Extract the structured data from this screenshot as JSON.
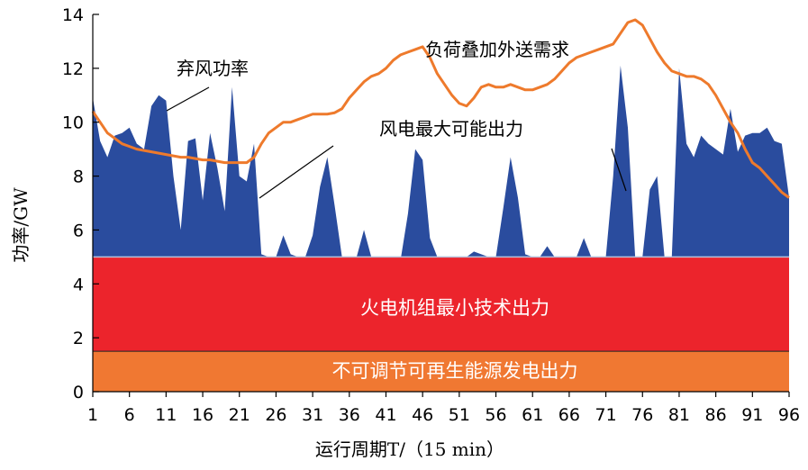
{
  "chart_data": {
    "type": "area",
    "xlabel": "运行周期T/（15 min）",
    "ylabel": "功率/GW",
    "xlim": [
      1,
      96
    ],
    "ylim": [
      0,
      14
    ],
    "xticks": [
      1,
      6,
      11,
      16,
      21,
      26,
      31,
      36,
      41,
      46,
      51,
      56,
      61,
      66,
      71,
      76,
      81,
      86,
      91,
      96
    ],
    "yticks": [
      0,
      2,
      4,
      6,
      8,
      10,
      12,
      14
    ],
    "grid": false,
    "annotations": {
      "curtailment": "弃风功率",
      "demand": "负荷叠加外送需求",
      "wind_max": "风电最大可能出力",
      "thermal_min": "火电机组最小技术出力",
      "renewable": "不可调节可再生能源发电出力"
    },
    "bands": [
      {
        "name": "不可调节可再生能源发电出力",
        "from": 0,
        "to": 1.5,
        "color": "#F07832"
      },
      {
        "name": "火电机组最小技术出力",
        "from": 1.5,
        "to": 5.0,
        "color": "#EC242C"
      }
    ],
    "series": [
      {
        "name": "风电最大可能出力",
        "color": "#2A4C9E",
        "x": [
          1,
          2,
          3,
          4,
          5,
          6,
          7,
          8,
          9,
          10,
          11,
          12,
          13,
          14,
          15,
          16,
          17,
          18,
          19,
          20,
          21,
          22,
          23,
          24,
          25,
          26,
          27,
          28,
          29,
          30,
          31,
          32,
          33,
          34,
          35,
          36,
          37,
          38,
          39,
          40,
          41,
          42,
          43,
          44,
          45,
          46,
          47,
          48,
          49,
          50,
          51,
          52,
          53,
          54,
          55,
          56,
          57,
          58,
          59,
          60,
          61,
          62,
          63,
          64,
          65,
          66,
          67,
          68,
          69,
          70,
          71,
          72,
          73,
          74,
          75,
          76,
          77,
          78,
          79,
          80,
          81,
          82,
          83,
          84,
          85,
          86,
          87,
          88,
          89,
          90,
          91,
          92,
          93,
          94,
          95,
          96
        ],
        "values": [
          10.9,
          9.3,
          8.7,
          9.5,
          9.6,
          9.8,
          9.2,
          9.0,
          10.6,
          11.0,
          10.8,
          8.0,
          6.0,
          9.3,
          9.4,
          7.1,
          9.6,
          8.3,
          6.7,
          11.3,
          8.0,
          7.8,
          9.2,
          5.1,
          5.0,
          5.0,
          5.8,
          5.1,
          5.0,
          5.0,
          5.8,
          7.6,
          8.7,
          6.9,
          5.0,
          5.0,
          5.0,
          6.0,
          5.0,
          5.0,
          5.0,
          5.0,
          4.9,
          6.6,
          9.0,
          8.6,
          5.7,
          5.0,
          5.0,
          5.0,
          5.0,
          5.0,
          5.2,
          5.1,
          5.0,
          5.0,
          6.8,
          8.7,
          7.2,
          5.1,
          5.0,
          5.0,
          5.4,
          5.0,
          5.0,
          5.0,
          5.0,
          5.7,
          5.0,
          5.0,
          5.0,
          8.0,
          12.1,
          9.8,
          5.0,
          5.0,
          7.5,
          8.0,
          5.0,
          5.0,
          12.0,
          9.2,
          8.7,
          9.5,
          9.2,
          9.0,
          8.8,
          10.5,
          8.9,
          9.5,
          9.6,
          9.6,
          9.8,
          9.3,
          9.2,
          7.2
        ]
      },
      {
        "name": "负荷叠加外送需求",
        "color": "#EE7A2C",
        "x": [
          1,
          2,
          3,
          4,
          5,
          6,
          7,
          8,
          9,
          10,
          11,
          12,
          13,
          14,
          15,
          16,
          17,
          18,
          19,
          20,
          21,
          22,
          23,
          24,
          25,
          26,
          27,
          28,
          29,
          30,
          31,
          32,
          33,
          34,
          35,
          36,
          37,
          38,
          39,
          40,
          41,
          42,
          43,
          44,
          45,
          46,
          47,
          48,
          49,
          50,
          51,
          52,
          53,
          54,
          55,
          56,
          57,
          58,
          59,
          60,
          61,
          62,
          63,
          64,
          65,
          66,
          67,
          68,
          69,
          70,
          71,
          72,
          73,
          74,
          75,
          76,
          77,
          78,
          79,
          80,
          81,
          82,
          83,
          84,
          85,
          86,
          87,
          88,
          89,
          90,
          91,
          92,
          93,
          94,
          95,
          96
        ],
        "values": [
          10.4,
          10.0,
          9.6,
          9.4,
          9.2,
          9.1,
          9.0,
          8.95,
          8.9,
          8.85,
          8.8,
          8.75,
          8.7,
          8.7,
          8.65,
          8.6,
          8.6,
          8.55,
          8.5,
          8.5,
          8.5,
          8.5,
          8.7,
          9.2,
          9.6,
          9.8,
          10.0,
          10.0,
          10.1,
          10.2,
          10.3,
          10.3,
          10.3,
          10.35,
          10.5,
          10.9,
          11.2,
          11.5,
          11.7,
          11.8,
          12.0,
          12.3,
          12.5,
          12.6,
          12.7,
          12.8,
          12.4,
          11.8,
          11.4,
          11.0,
          10.7,
          10.6,
          10.9,
          11.3,
          11.4,
          11.3,
          11.3,
          11.4,
          11.3,
          11.2,
          11.2,
          11.3,
          11.4,
          11.6,
          11.9,
          12.2,
          12.4,
          12.5,
          12.6,
          12.7,
          12.8,
          12.9,
          13.3,
          13.7,
          13.8,
          13.6,
          13.1,
          12.6,
          12.2,
          11.9,
          11.8,
          11.7,
          11.7,
          11.6,
          11.4,
          11.0,
          10.5,
          10.0,
          9.6,
          9.0,
          8.5,
          8.3,
          8.0,
          7.7,
          7.4,
          7.2
        ]
      }
    ]
  }
}
